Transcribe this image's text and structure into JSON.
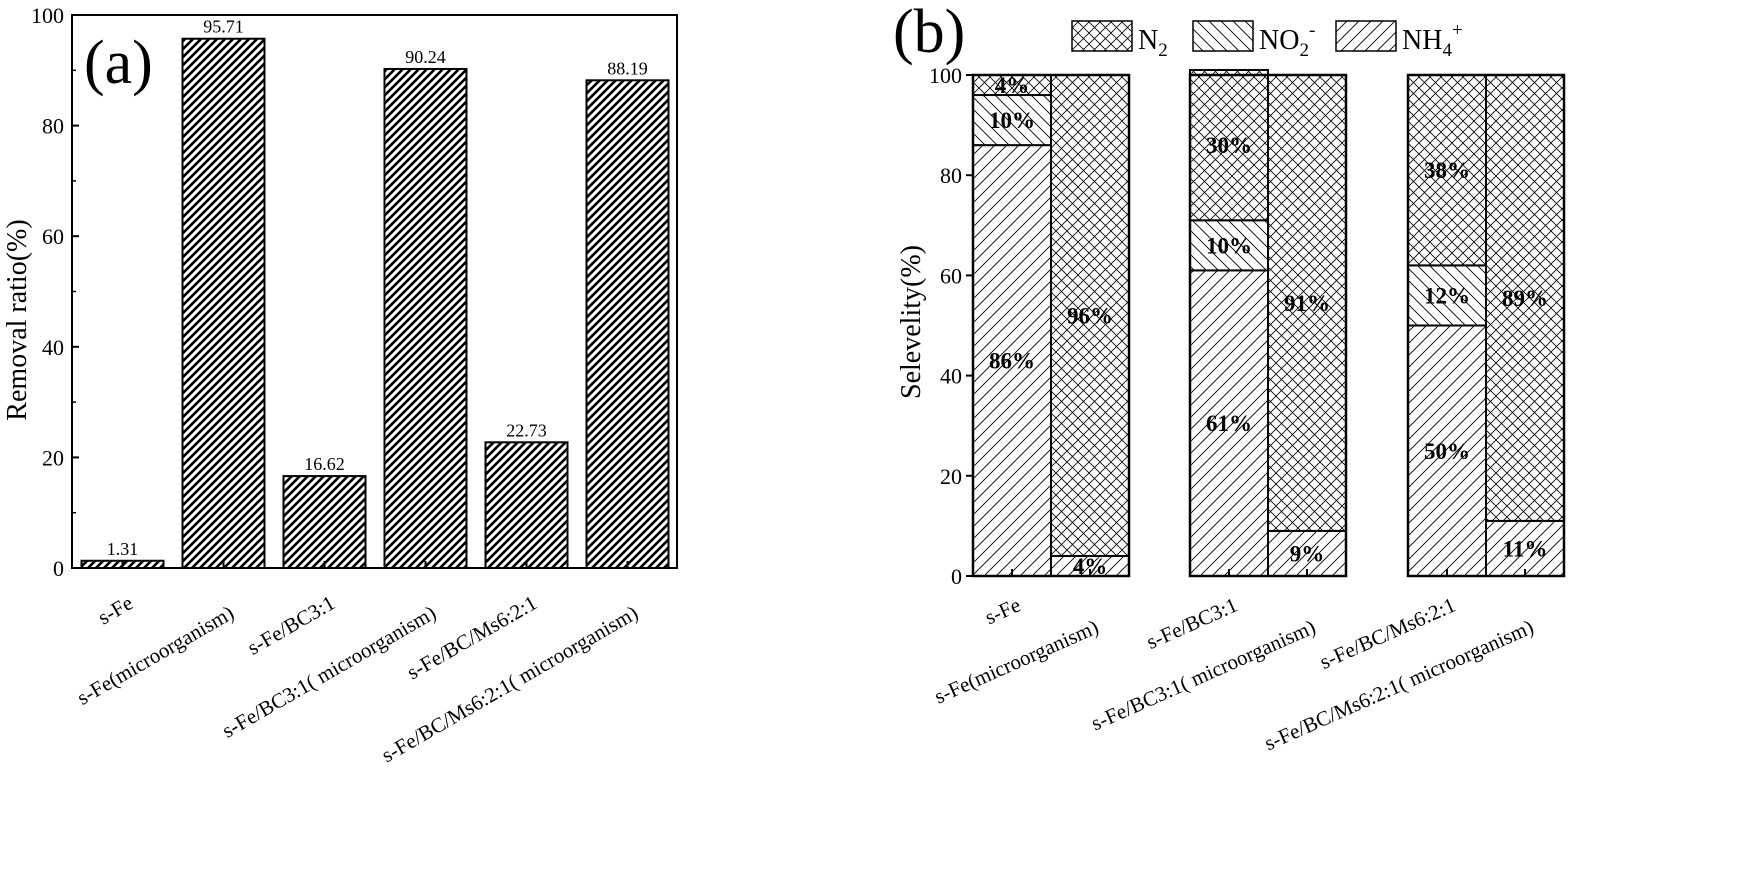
{
  "chart_data": [
    {
      "type": "bar",
      "panel_label": "(a)",
      "ylabel": "Removal ratio(%)",
      "ylim": [
        0,
        100
      ],
      "yticks": [
        0,
        20,
        40,
        60,
        80,
        100
      ],
      "categories": [
        "s-Fe",
        "s-Fe(microorganism)",
        "s-Fe/BC3:1",
        "s-Fe/BC3:1(  microorganism)",
        "s-Fe/BC/Ms6:2:1",
        "s-Fe/BC/Ms6:2:1(  microorganism)"
      ],
      "values": [
        1.31,
        95.71,
        16.62,
        90.24,
        22.73,
        88.19
      ],
      "value_labels": [
        "1.31",
        "95.71",
        "16.62",
        "90.24",
        "22.73",
        "88.19"
      ],
      "pattern": "dense diagonal hatch"
    },
    {
      "type": "bar",
      "stacked": true,
      "panel_label": "(b)",
      "ylabel": "Selevelity(%)",
      "ylim": [
        0,
        100
      ],
      "yticks": [
        0,
        20,
        40,
        60,
        80,
        100
      ],
      "legend_position": "top",
      "categories": [
        "s-Fe",
        "s-Fe(microorganism)",
        "s-Fe/BC3:1",
        "s-Fe/BC3:1(  microorganism)",
        "s-Fe/BC/Ms6:2:1",
        "s-Fe/BC/Ms6:2:1(  microorganism)"
      ],
      "series": [
        {
          "name": "NH4+",
          "pattern": "sparse diagonal hatch",
          "values": [
            86,
            4,
            61,
            9,
            50,
            11
          ]
        },
        {
          "name": "NO2-",
          "pattern": "medium diagonal hatch",
          "values": [
            10,
            0,
            10,
            0,
            12,
            0
          ]
        },
        {
          "name": "N2",
          "pattern": "cross hatch",
          "values": [
            4,
            96,
            30,
            91,
            38,
            89
          ]
        }
      ],
      "segment_labels": [
        [
          "86%",
          "10%",
          "4%"
        ],
        [
          "4%",
          "",
          "96%"
        ],
        [
          "61%",
          "10%",
          "30%"
        ],
        [
          "9%",
          "",
          "91%"
        ],
        [
          "50%",
          "12%",
          "38%"
        ],
        [
          "11%",
          "",
          "89%"
        ]
      ]
    }
  ]
}
